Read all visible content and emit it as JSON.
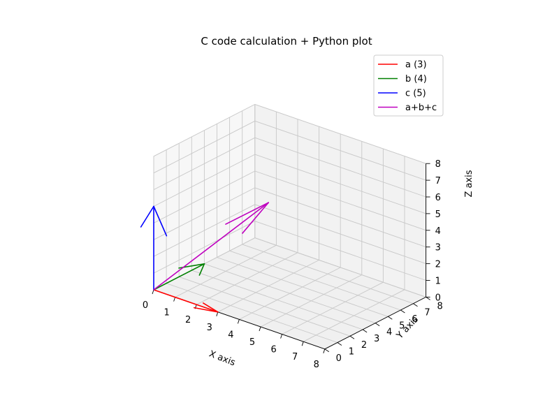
{
  "chart_data": {
    "type": "quiver3d",
    "title": "C code calculation + Python plot",
    "xlabel": "X axis",
    "ylabel": "Y axis",
    "zlabel": "Z axis",
    "xlim": [
      0,
      8
    ],
    "ylim": [
      0,
      8
    ],
    "zlim": [
      0,
      8
    ],
    "ticks": [
      0,
      1,
      2,
      3,
      4,
      5,
      6,
      7,
      8
    ],
    "grid": true,
    "legend_position": "top-right",
    "series": [
      {
        "name": "a (3)",
        "color": "#ff0000",
        "origin": [
          0,
          0,
          0
        ],
        "vector": [
          3,
          0,
          0
        ]
      },
      {
        "name": "b (4)",
        "color": "#008000",
        "origin": [
          0,
          0,
          0
        ],
        "vector": [
          0,
          4,
          0
        ]
      },
      {
        "name": "c (5)",
        "color": "#0000ff",
        "origin": [
          0,
          0,
          0
        ],
        "vector": [
          0,
          0,
          5
        ]
      },
      {
        "name": "a+b+c",
        "color": "#bf00bf",
        "origin": [
          0,
          0,
          0
        ],
        "vector": [
          3,
          4,
          5
        ]
      }
    ]
  }
}
